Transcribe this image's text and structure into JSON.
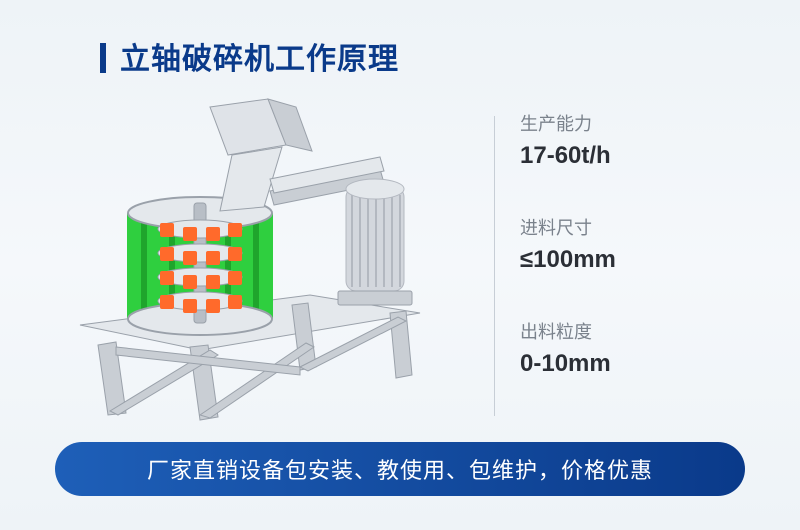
{
  "title": {
    "text": "立轴破碎机工作原理",
    "color": "#0a3a8a",
    "accent_color": "#0a3a8a"
  },
  "specs": [
    {
      "label": "生产能力",
      "value": "17-60t/h"
    },
    {
      "label": "进料尺寸",
      "value": "≤100mm"
    },
    {
      "label": "出料粒度",
      "value": "0-10mm"
    }
  ],
  "banner": {
    "text": "厂家直销设备包安装、教使用、包维护，价格优惠",
    "gradient_from": "#1e5fb8",
    "gradient_to": "#0a3a8a"
  },
  "machine": {
    "frame_color": "#c9ced4",
    "frame_edge": "#9aa1aa",
    "frame_light": "#e4e8ec",
    "chamber_green": "#2fcf3f",
    "chamber_green_dark": "#1fa52c",
    "hammer_color": "#ff6a2b",
    "shaft_color": "#b8bec6",
    "hopper_color": "#dfe3e8",
    "motor_color": "#d3d7dd",
    "motor_dark": "#b3b8c0"
  }
}
